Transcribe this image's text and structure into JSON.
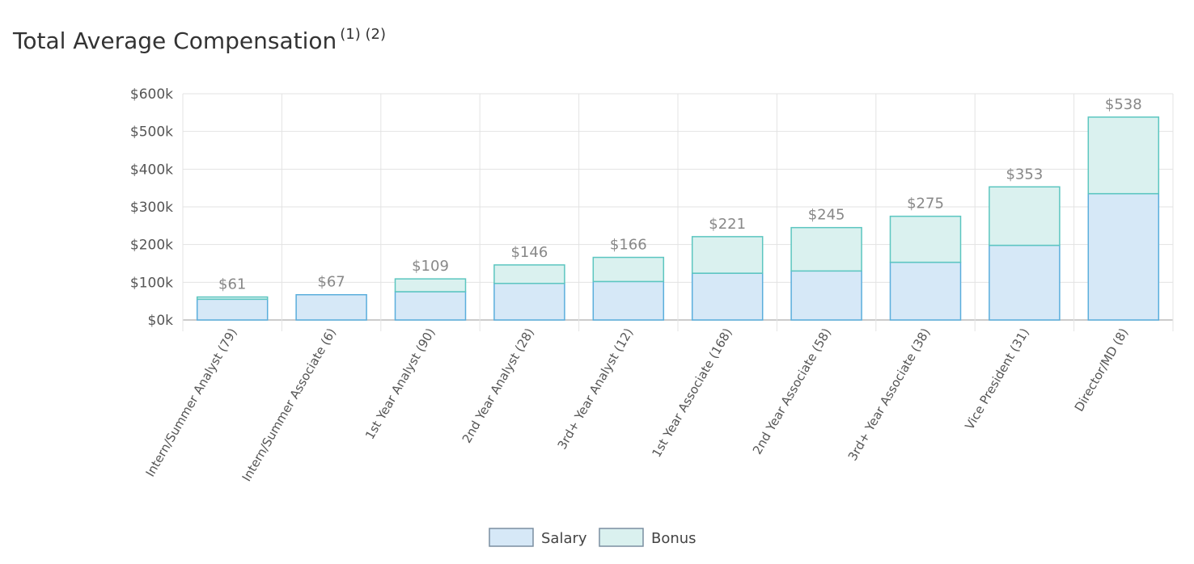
{
  "title": "Total Average Compensation",
  "title_notes": "(1) (2)",
  "chart_data": {
    "type": "bar",
    "stacked": true,
    "categories": [
      "Intern/Summer Analyst (79)",
      "Intern/Summer Associate (6)",
      "1st Year Analyst (90)",
      "2nd Year Analyst (28)",
      "3rd+ Year Analyst (12)",
      "1st Year Associate (168)",
      "2nd Year Associate (58)",
      "3rd+ Year Associate (38)",
      "Vice President (31)",
      "Director/MD (8)"
    ],
    "series": [
      {
        "name": "Salary",
        "values": [
          55,
          67,
          75,
          97,
          102,
          124,
          130,
          153,
          198,
          335
        ],
        "color": "#d6e8f7",
        "stroke": "#5aaedc"
      },
      {
        "name": "Bonus",
        "values": [
          6,
          0,
          34,
          49,
          64,
          97,
          115,
          122,
          155,
          203
        ],
        "color": "#daf1ef",
        "stroke": "#5cc6c0"
      }
    ],
    "total_labels": [
      "$61",
      "$67",
      "$109",
      "$146",
      "$166",
      "$221",
      "$245",
      "$275",
      "$353",
      "$538"
    ],
    "y_ticks": [
      "$0k",
      "$100k",
      "$200k",
      "$300k",
      "$400k",
      "$500k",
      "$600k"
    ],
    "ylim": [
      0,
      600
    ],
    "grid": true,
    "legend_position": "bottom-center"
  }
}
